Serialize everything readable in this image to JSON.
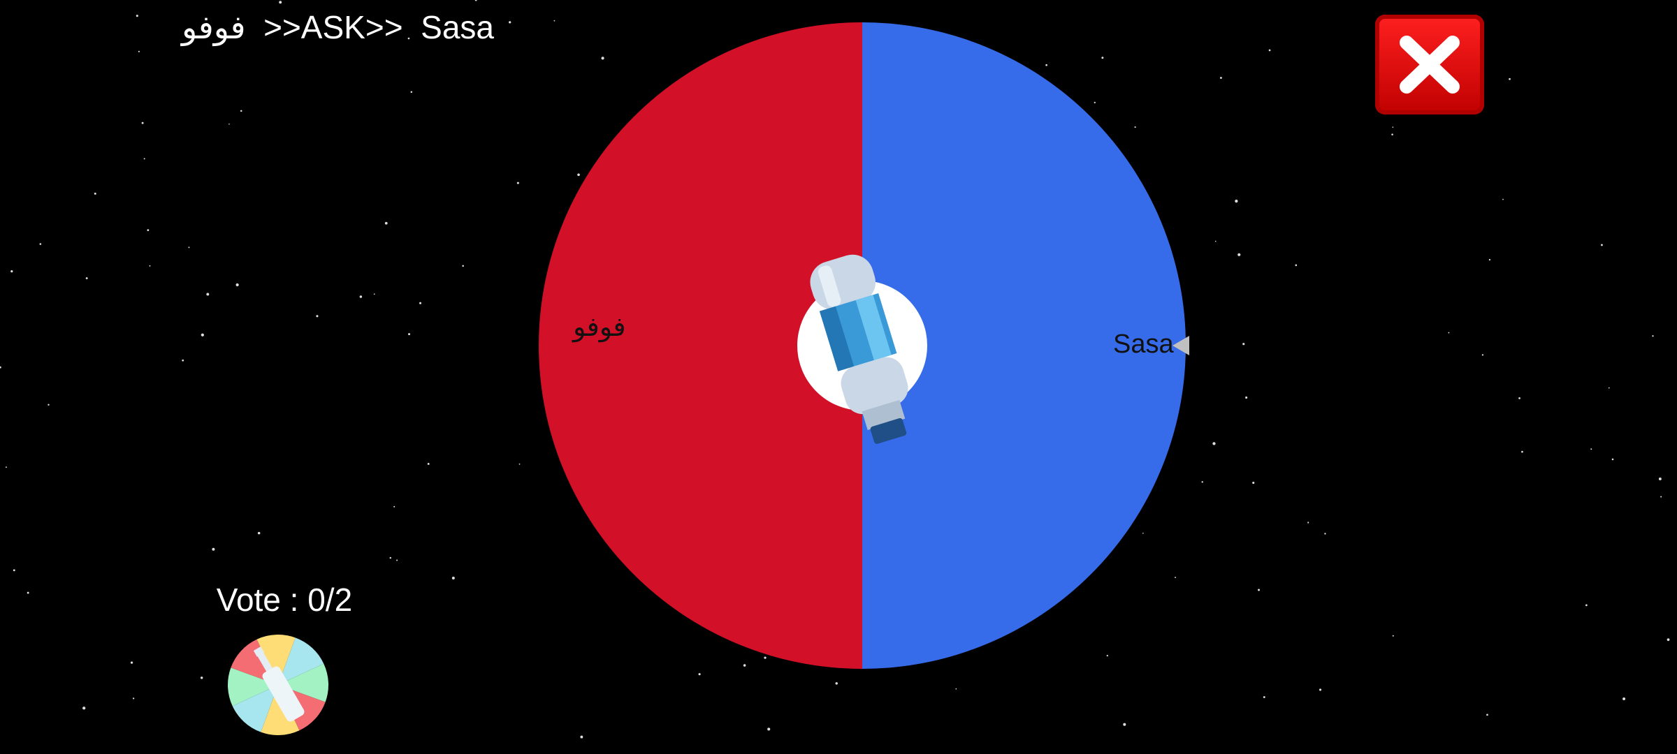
{
  "header": {
    "title": "فوفو  >>ASK>>  Sasa"
  },
  "wheel": {
    "segments": [
      {
        "label": "فوفو",
        "color": "#d21027"
      },
      {
        "label": "Sasa",
        "color": "#366bea"
      }
    ],
    "hub_color": "#ffffff",
    "pointer_color": "#c0c0c0",
    "center_icon": "water-bottle-icon"
  },
  "vote": {
    "label": "Vote : 0/2"
  },
  "close_button": {
    "icon": "close-x-icon",
    "color": "#e00000"
  },
  "spin_button": {
    "icon": "spin-the-bottle-icon"
  }
}
